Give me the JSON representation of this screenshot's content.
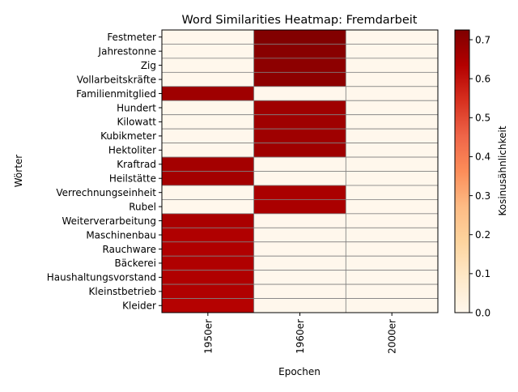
{
  "chart_data": {
    "type": "heatmap",
    "title": "Word Similarities Heatmap: Fremdarbeit",
    "xlabel": "Epochen",
    "ylabel": "Wörter",
    "colorbar_label": "Kosinusähnlichkeit",
    "colorbar_ticks": [
      0.0,
      0.1,
      0.2,
      0.3,
      0.4,
      0.5,
      0.6,
      0.7
    ],
    "colorbar_tick_labels": [
      "0.0",
      "0.1",
      "0.2",
      "0.3",
      "0.4",
      "0.5",
      "0.6",
      "0.7"
    ],
    "vmin": 0.0,
    "vmax": 0.725,
    "colormap": "OrRd",
    "cell_edge_color": "#808080",
    "columns": [
      "1950er",
      "1960er",
      "2000er"
    ],
    "rows": [
      "Festmeter",
      "Jahrestonne",
      "Zig",
      "Vollarbeitskräfte",
      "Familienmitglied",
      "Hundert",
      "Kilowatt",
      "Kubikmeter",
      "Hektoliter",
      "Kraftrad",
      "Heilstätte",
      "Verrechnungseinheit",
      "Rubel",
      "Weiterverarbeitung",
      "Maschinenbau",
      "Rauchware",
      "Bäckerei",
      "Haushaltungsvorstand",
      "Kleinstbetrieb",
      "Kleider"
    ],
    "values": [
      [
        0.0,
        0.72,
        0.0
      ],
      [
        0.0,
        0.71,
        0.0
      ],
      [
        0.0,
        0.7,
        0.0
      ],
      [
        0.0,
        0.7,
        0.0
      ],
      [
        0.67,
        0.0,
        0.0
      ],
      [
        0.0,
        0.67,
        0.0
      ],
      [
        0.0,
        0.67,
        0.0
      ],
      [
        0.0,
        0.67,
        0.0
      ],
      [
        0.0,
        0.67,
        0.0
      ],
      [
        0.66,
        0.0,
        0.0
      ],
      [
        0.66,
        0.0,
        0.0
      ],
      [
        0.0,
        0.65,
        0.0
      ],
      [
        0.0,
        0.65,
        0.0
      ],
      [
        0.65,
        0.0,
        0.0
      ],
      [
        0.64,
        0.0,
        0.0
      ],
      [
        0.64,
        0.0,
        0.0
      ],
      [
        0.64,
        0.0,
        0.0
      ],
      [
        0.64,
        0.0,
        0.0
      ],
      [
        0.64,
        0.0,
        0.0
      ],
      [
        0.63,
        0.0,
        0.0
      ]
    ]
  }
}
